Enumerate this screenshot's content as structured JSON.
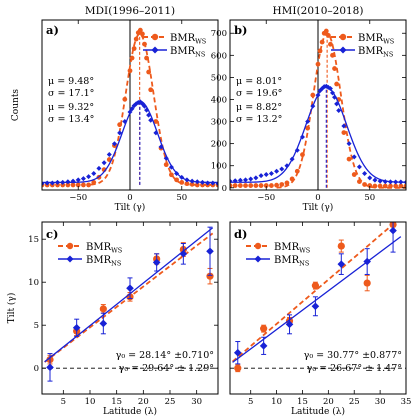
{
  "colors": {
    "ws": "#ee5a1c",
    "ns": "#1822d6",
    "axis": "#000000"
  },
  "legend": {
    "ws_main": "BMR",
    "ws_sub": "WS",
    "ns_main": "BMR",
    "ns_sub": "NS"
  },
  "chart_data": [
    {
      "panel": "a)",
      "title": "MDI(1996–2011)",
      "type": "scatter",
      "xlabel": "Tilt (γ)",
      "ylabel": "Counts",
      "xlim": [
        -85,
        85
      ],
      "ylim": [
        -8,
        260
      ],
      "xticks": [
        -50,
        0,
        50
      ],
      "xtick_labels": [
        "−50",
        "0",
        "50"
      ],
      "yticks": [],
      "stats": [
        "μ = 9.48°",
        "σ = 17.1°",
        "μ = 9.32°",
        "σ = 13.4°"
      ],
      "stats_colors": [
        "ns",
        "ns",
        "ws",
        "ws"
      ],
      "zero_line": "vertical",
      "series": [
        {
          "name": "BMR_WS",
          "key": "ws",
          "marker": "circle",
          "fit": "dashed",
          "fit_params": {
            "mu": 9.32,
            "sigma": 13.4,
            "amp": 238,
            "base": 0,
            "cutoff_low": -38
          },
          "x": [
            -85,
            -80,
            -75,
            -70,
            -65,
            -60,
            -55,
            -50,
            -45,
            -40,
            -35,
            -30,
            -25,
            -20,
            -15,
            -10,
            -5,
            0,
            2,
            4,
            6,
            8,
            10,
            12,
            14,
            16,
            18,
            20,
            25,
            30,
            35,
            40,
            45,
            50,
            55,
            60,
            65,
            70,
            75,
            80,
            85
          ],
          "y": [
            0,
            0,
            0,
            0,
            0,
            0,
            0,
            0,
            0,
            0,
            4,
            12,
            24,
            40,
            62,
            95,
            135,
            180,
            200,
            215,
            230,
            240,
            244,
            238,
            222,
            200,
            178,
            150,
            100,
            58,
            32,
            16,
            8,
            4,
            2,
            1,
            0,
            0,
            0,
            0,
            0
          ]
        },
        {
          "name": "BMR_NS",
          "key": "ns",
          "marker": "diamond",
          "fit": "solid",
          "fit_params": {
            "mu": 9.48,
            "sigma": 17.1,
            "amp": 128,
            "base": 4
          },
          "x": [
            -85,
            -80,
            -75,
            -70,
            -65,
            -60,
            -55,
            -50,
            -45,
            -40,
            -35,
            -30,
            -25,
            -20,
            -15,
            -10,
            -5,
            0,
            2,
            4,
            6,
            8,
            10,
            12,
            14,
            16,
            18,
            20,
            25,
            30,
            35,
            40,
            45,
            50,
            55,
            60,
            65,
            70,
            75,
            80,
            85
          ],
          "y": [
            2,
            3,
            3,
            4,
            4,
            5,
            6,
            8,
            10,
            13,
            18,
            26,
            35,
            48,
            65,
            82,
            100,
            115,
            120,
            125,
            128,
            130,
            131,
            128,
            124,
            118,
            110,
            102,
            82,
            60,
            42,
            28,
            18,
            12,
            8,
            6,
            5,
            4,
            3,
            3,
            2
          ]
        }
      ]
    },
    {
      "panel": "b)",
      "title": "HMI(2010–2018)",
      "type": "scatter",
      "xlabel": "Tilt (γ)",
      "ylabel": "",
      "xlim": [
        -85,
        85
      ],
      "ylim": [
        -10,
        760
      ],
      "xticks": [
        -50,
        0,
        50
      ],
      "xtick_labels": [
        "−50",
        "0",
        "50"
      ],
      "yticks": [
        0,
        100,
        200,
        300,
        400,
        500,
        600,
        700
      ],
      "ytick_labels": [
        "0",
        "100",
        "200",
        "300",
        "400",
        "500",
        "600",
        "700"
      ],
      "stats": [
        "μ = 8.01°",
        "σ = 19.6°",
        "μ = 8.82°",
        "σ = 13.2°"
      ],
      "stats_colors": [
        "ns",
        "ns",
        "ws",
        "ws"
      ],
      "zero_line": "vertical",
      "series": [
        {
          "name": "BMR_WS",
          "key": "ws",
          "marker": "circle",
          "fit": "dashed",
          "fit_params": {
            "mu": 8.82,
            "sigma": 13.2,
            "amp": 700,
            "base": 0,
            "cutoff_low": -40
          },
          "x": [
            -85,
            -80,
            -75,
            -70,
            -65,
            -60,
            -55,
            -50,
            -45,
            -40,
            -35,
            -30,
            -25,
            -20,
            -15,
            -10,
            -5,
            0,
            2,
            4,
            6,
            8,
            10,
            12,
            14,
            16,
            18,
            20,
            25,
            30,
            35,
            40,
            45,
            50,
            55,
            60,
            65,
            70,
            75,
            80,
            85
          ],
          "y": [
            10,
            10,
            10,
            10,
            10,
            10,
            10,
            10,
            10,
            12,
            15,
            22,
            40,
            75,
            150,
            270,
            420,
            560,
            620,
            660,
            700,
            710,
            690,
            650,
            600,
            540,
            470,
            400,
            250,
            130,
            60,
            28,
            15,
            10,
            8,
            8,
            8,
            8,
            8,
            8,
            8
          ]
        },
        {
          "name": "BMR_NS",
          "key": "ns",
          "marker": "diamond",
          "fit": "solid",
          "fit_params": {
            "mu": 8.01,
            "sigma": 19.6,
            "amp": 430,
            "base": 25
          },
          "x": [
            -85,
            -80,
            -75,
            -70,
            -65,
            -60,
            -55,
            -50,
            -45,
            -40,
            -35,
            -30,
            -25,
            -20,
            -15,
            -10,
            -5,
            0,
            2,
            4,
            6,
            8,
            10,
            12,
            14,
            16,
            18,
            20,
            25,
            30,
            35,
            40,
            45,
            50,
            55,
            60,
            65,
            70,
            75,
            80,
            85
          ],
          "y": [
            30,
            32,
            34,
            36,
            40,
            45,
            55,
            60,
            65,
            75,
            85,
            100,
            130,
            170,
            230,
            300,
            370,
            420,
            440,
            450,
            458,
            460,
            455,
            450,
            430,
            410,
            380,
            350,
            280,
            200,
            140,
            95,
            65,
            45,
            35,
            30,
            28,
            27,
            26,
            26,
            25
          ]
        }
      ]
    },
    {
      "panel": "c)",
      "title": "",
      "type": "scatter",
      "xlabel": "Latitude (λ)",
      "ylabel": "Tilt (γ)",
      "xlim": [
        1,
        34
      ],
      "ylim": [
        -3,
        17
      ],
      "xticks": [
        0,
        5,
        10,
        15,
        20,
        25,
        30
      ],
      "xtick_labels": [
        "0",
        "5",
        "10",
        "15",
        "20",
        "25",
        "30"
      ],
      "yticks": [
        0,
        5,
        10,
        15
      ],
      "ytick_labels": [
        "0",
        "5",
        "10",
        "15"
      ],
      "stats": [
        "γ₀ = 28.14° ±0.710°",
        "γ₀ = 29.64° ± 1.29°"
      ],
      "stats_colors": [
        "ws",
        "ns"
      ],
      "zero_line": "horizontal",
      "series": [
        {
          "name": "BMR_WS",
          "key": "ws",
          "marker": "circle",
          "fit": "dashed",
          "fit_params": {
            "slope": 0.475,
            "intercept": 0
          },
          "x": [
            2.5,
            7.5,
            12.5,
            17.5,
            22.5,
            27.5,
            32.5
          ],
          "y": [
            1.0,
            4.3,
            6.9,
            8.3,
            12.7,
            13.8,
            10.7
          ],
          "err": [
            0.5,
            0.5,
            0.5,
            0.5,
            0.6,
            0.8,
            0.9
          ]
        },
        {
          "name": "BMR_NS",
          "key": "ns",
          "marker": "diamond",
          "fit": "solid",
          "fit_params": {
            "slope": 0.495,
            "intercept": 0
          },
          "x": [
            2.5,
            7.5,
            12.5,
            17.5,
            22.5,
            27.5,
            32.5
          ],
          "y": [
            0.1,
            4.7,
            5.2,
            9.3,
            12.3,
            13.3,
            13.6
          ],
          "err": [
            1.6,
            1.0,
            1.2,
            1.2,
            1.0,
            1.2,
            2.8
          ]
        }
      ]
    },
    {
      "panel": "d)",
      "title": "",
      "type": "scatter",
      "xlabel": "Latitude (λ)",
      "ylabel": "",
      "xlim": [
        1,
        35
      ],
      "ylim": [
        -3,
        17
      ],
      "xticks": [
        0,
        5,
        10,
        15,
        20,
        25,
        30,
        35
      ],
      "xtick_labels": [
        "0",
        "5",
        "10",
        "15",
        "20",
        "25",
        "30",
        "35"
      ],
      "yticks": [],
      "stats": [
        "γ₀ = 30.77° ±0.877°",
        "γ₀ = 26.67° ± 1.47°"
      ],
      "stats_colors": [
        "ws",
        "ns"
      ],
      "zero_line": "horizontal",
      "series": [
        {
          "name": "BMR_WS",
          "key": "ws",
          "marker": "circle",
          "fit": "dashed",
          "fit_params": {
            "slope": 0.515,
            "intercept": 0
          },
          "x": [
            2.5,
            7.5,
            12.5,
            17.5,
            22.5,
            27.5,
            32.5
          ],
          "y": [
            0.0,
            4.6,
            5.5,
            9.6,
            14.2,
            9.9,
            16.7
          ],
          "err": [
            0.4,
            0.4,
            0.4,
            0.4,
            0.7,
            0.9,
            0.8
          ]
        },
        {
          "name": "BMR_NS",
          "key": "ns",
          "marker": "diamond",
          "fit": "solid",
          "fit_params": {
            "slope": 0.45,
            "intercept": 0
          },
          "x": [
            2.5,
            7.5,
            12.5,
            17.5,
            22.5,
            27.5,
            32.5
          ],
          "y": [
            1.8,
            2.6,
            5.1,
            7.2,
            12.1,
            12.4,
            16.0
          ],
          "err": [
            1.3,
            1.0,
            1.1,
            1.1,
            1.2,
            1.5,
            2.5
          ]
        }
      ]
    }
  ]
}
